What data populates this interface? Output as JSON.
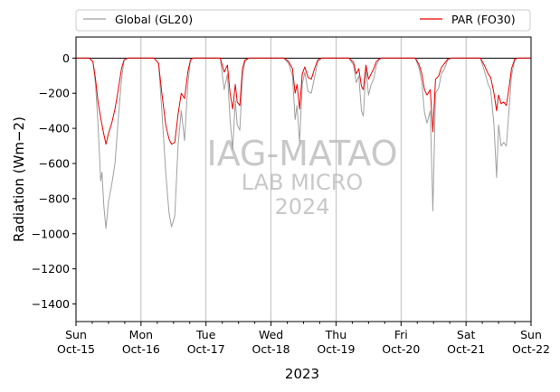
{
  "chart_data": {
    "type": "line",
    "xlabel": "2023",
    "ylabel": "Radiation (Wm−2)",
    "ylim": [
      -1500,
      120
    ],
    "yticks": [
      0,
      -200,
      -400,
      -600,
      -800,
      -1000,
      -1200,
      -1400
    ],
    "xlim": [
      0,
      7
    ],
    "xticks": [
      {
        "day": 0,
        "top": "Sun",
        "bottom": "Oct-15"
      },
      {
        "day": 1,
        "top": "Mon",
        "bottom": "Oct-16"
      },
      {
        "day": 2,
        "top": "Tue",
        "bottom": "Oct-17"
      },
      {
        "day": 3,
        "top": "Wed",
        "bottom": "Oct-18"
      },
      {
        "day": 4,
        "top": "Thu",
        "bottom": "Oct-19"
      },
      {
        "day": 5,
        "top": "Fri",
        "bottom": "Oct-20"
      },
      {
        "day": 6,
        "top": "Sat",
        "bottom": "Oct-21"
      },
      {
        "day": 7,
        "top": "Sun",
        "bottom": "Oct-22"
      }
    ],
    "grid": "vertical",
    "legend_position": "top, above plot",
    "watermark": [
      "IAG-MATAO",
      "LAB MICRO",
      "2024"
    ],
    "series": [
      {
        "name": "Global (GL20)",
        "color": "#a0a0a0",
        "points": [
          [
            0.0,
            0
          ],
          [
            0.2,
            0
          ],
          [
            0.26,
            -20
          ],
          [
            0.3,
            -150
          ],
          [
            0.34,
            -380
          ],
          [
            0.38,
            -700
          ],
          [
            0.4,
            -650
          ],
          [
            0.43,
            -850
          ],
          [
            0.46,
            -970
          ],
          [
            0.5,
            -820
          ],
          [
            0.55,
            -720
          ],
          [
            0.6,
            -600
          ],
          [
            0.65,
            -350
          ],
          [
            0.7,
            -120
          ],
          [
            0.74,
            -10
          ],
          [
            0.8,
            0
          ],
          [
            1.0,
            0
          ],
          [
            1.2,
            0
          ],
          [
            1.27,
            -30
          ],
          [
            1.32,
            -300
          ],
          [
            1.38,
            -650
          ],
          [
            1.43,
            -880
          ],
          [
            1.47,
            -960
          ],
          [
            1.52,
            -900
          ],
          [
            1.57,
            -500
          ],
          [
            1.62,
            -300
          ],
          [
            1.67,
            -470
          ],
          [
            1.72,
            -150
          ],
          [
            1.76,
            -10
          ],
          [
            1.8,
            0
          ],
          [
            2.0,
            0
          ],
          [
            2.22,
            0
          ],
          [
            2.28,
            -180
          ],
          [
            2.33,
            -90
          ],
          [
            2.37,
            -350
          ],
          [
            2.41,
            -520
          ],
          [
            2.45,
            -240
          ],
          [
            2.48,
            -380
          ],
          [
            2.52,
            -410
          ],
          [
            2.56,
            -100
          ],
          [
            2.6,
            -20
          ],
          [
            2.66,
            0
          ],
          [
            3.0,
            0
          ],
          [
            3.2,
            0
          ],
          [
            3.27,
            -30
          ],
          [
            3.33,
            -100
          ],
          [
            3.37,
            -350
          ],
          [
            3.4,
            -270
          ],
          [
            3.44,
            -480
          ],
          [
            3.48,
            -150
          ],
          [
            3.52,
            -80
          ],
          [
            3.57,
            -190
          ],
          [
            3.62,
            -200
          ],
          [
            3.67,
            -110
          ],
          [
            3.72,
            -20
          ],
          [
            3.78,
            0
          ],
          [
            4.0,
            0
          ],
          [
            4.2,
            0
          ],
          [
            4.27,
            -40
          ],
          [
            4.31,
            -140
          ],
          [
            4.35,
            -100
          ],
          [
            4.39,
            -300
          ],
          [
            4.42,
            -330
          ],
          [
            4.46,
            -60
          ],
          [
            4.5,
            -210
          ],
          [
            4.54,
            -150
          ],
          [
            4.58,
            -120
          ],
          [
            4.62,
            -40
          ],
          [
            4.66,
            -10
          ],
          [
            4.7,
            0
          ],
          [
            5.0,
            0
          ],
          [
            5.22,
            0
          ],
          [
            5.28,
            -60
          ],
          [
            5.32,
            -140
          ],
          [
            5.36,
            -310
          ],
          [
            5.4,
            -370
          ],
          [
            5.45,
            -300
          ],
          [
            5.49,
            -870
          ],
          [
            5.53,
            -200
          ],
          [
            5.58,
            -170
          ],
          [
            5.62,
            -90
          ],
          [
            5.67,
            -60
          ],
          [
            5.72,
            -10
          ],
          [
            5.78,
            0
          ],
          [
            6.0,
            0
          ],
          [
            6.22,
            0
          ],
          [
            6.28,
            -70
          ],
          [
            6.34,
            -150
          ],
          [
            6.38,
            -180
          ],
          [
            6.43,
            -380
          ],
          [
            6.47,
            -680
          ],
          [
            6.5,
            -380
          ],
          [
            6.54,
            -500
          ],
          [
            6.58,
            -480
          ],
          [
            6.62,
            -500
          ],
          [
            6.66,
            -300
          ],
          [
            6.7,
            -100
          ],
          [
            6.75,
            -10
          ],
          [
            6.8,
            0
          ],
          [
            7.0,
            0
          ]
        ]
      },
      {
        "name": "PAR (FO30)",
        "color": "#ee0000",
        "points": [
          [
            0.0,
            0
          ],
          [
            0.2,
            0
          ],
          [
            0.26,
            -20
          ],
          [
            0.3,
            -120
          ],
          [
            0.34,
            -250
          ],
          [
            0.38,
            -340
          ],
          [
            0.42,
            -420
          ],
          [
            0.46,
            -490
          ],
          [
            0.5,
            -430
          ],
          [
            0.55,
            -370
          ],
          [
            0.6,
            -290
          ],
          [
            0.65,
            -180
          ],
          [
            0.7,
            -60
          ],
          [
            0.74,
            -10
          ],
          [
            0.8,
            0
          ],
          [
            1.0,
            0
          ],
          [
            1.2,
            0
          ],
          [
            1.27,
            -30
          ],
          [
            1.32,
            -200
          ],
          [
            1.38,
            -380
          ],
          [
            1.43,
            -460
          ],
          [
            1.47,
            -490
          ],
          [
            1.52,
            -480
          ],
          [
            1.57,
            -320
          ],
          [
            1.62,
            -200
          ],
          [
            1.67,
            -230
          ],
          [
            1.72,
            -80
          ],
          [
            1.76,
            -10
          ],
          [
            1.8,
            0
          ],
          [
            2.0,
            0
          ],
          [
            2.22,
            0
          ],
          [
            2.28,
            -80
          ],
          [
            2.33,
            -40
          ],
          [
            2.37,
            -200
          ],
          [
            2.41,
            -290
          ],
          [
            2.45,
            -150
          ],
          [
            2.48,
            -250
          ],
          [
            2.52,
            -270
          ],
          [
            2.56,
            -60
          ],
          [
            2.6,
            -10
          ],
          [
            2.66,
            0
          ],
          [
            3.0,
            0
          ],
          [
            3.2,
            0
          ],
          [
            3.27,
            -20
          ],
          [
            3.33,
            -60
          ],
          [
            3.37,
            -200
          ],
          [
            3.4,
            -150
          ],
          [
            3.44,
            -290
          ],
          [
            3.48,
            -90
          ],
          [
            3.52,
            -50
          ],
          [
            3.57,
            -110
          ],
          [
            3.62,
            -120
          ],
          [
            3.67,
            -60
          ],
          [
            3.72,
            -10
          ],
          [
            3.78,
            0
          ],
          [
            4.0,
            0
          ],
          [
            4.2,
            0
          ],
          [
            4.27,
            -25
          ],
          [
            4.31,
            -90
          ],
          [
            4.35,
            -60
          ],
          [
            4.39,
            -160
          ],
          [
            4.42,
            -180
          ],
          [
            4.46,
            -40
          ],
          [
            4.5,
            -120
          ],
          [
            4.54,
            -90
          ],
          [
            4.58,
            -60
          ],
          [
            4.62,
            -20
          ],
          [
            4.66,
            -5
          ],
          [
            4.7,
            0
          ],
          [
            5.0,
            0
          ],
          [
            5.22,
            0
          ],
          [
            5.28,
            -40
          ],
          [
            5.32,
            -90
          ],
          [
            5.36,
            -180
          ],
          [
            5.4,
            -210
          ],
          [
            5.45,
            -180
          ],
          [
            5.49,
            -420
          ],
          [
            5.53,
            -120
          ],
          [
            5.58,
            -100
          ],
          [
            5.62,
            -55
          ],
          [
            5.67,
            -30
          ],
          [
            5.72,
            -5
          ],
          [
            5.78,
            0
          ],
          [
            6.0,
            0
          ],
          [
            6.22,
            0
          ],
          [
            6.28,
            -40
          ],
          [
            6.34,
            -90
          ],
          [
            6.38,
            -110
          ],
          [
            6.43,
            -200
          ],
          [
            6.47,
            -300
          ],
          [
            6.5,
            -210
          ],
          [
            6.54,
            -260
          ],
          [
            6.58,
            -250
          ],
          [
            6.62,
            -270
          ],
          [
            6.66,
            -170
          ],
          [
            6.7,
            -60
          ],
          [
            6.75,
            -5
          ],
          [
            6.8,
            0
          ],
          [
            7.0,
            0
          ]
        ]
      }
    ]
  }
}
